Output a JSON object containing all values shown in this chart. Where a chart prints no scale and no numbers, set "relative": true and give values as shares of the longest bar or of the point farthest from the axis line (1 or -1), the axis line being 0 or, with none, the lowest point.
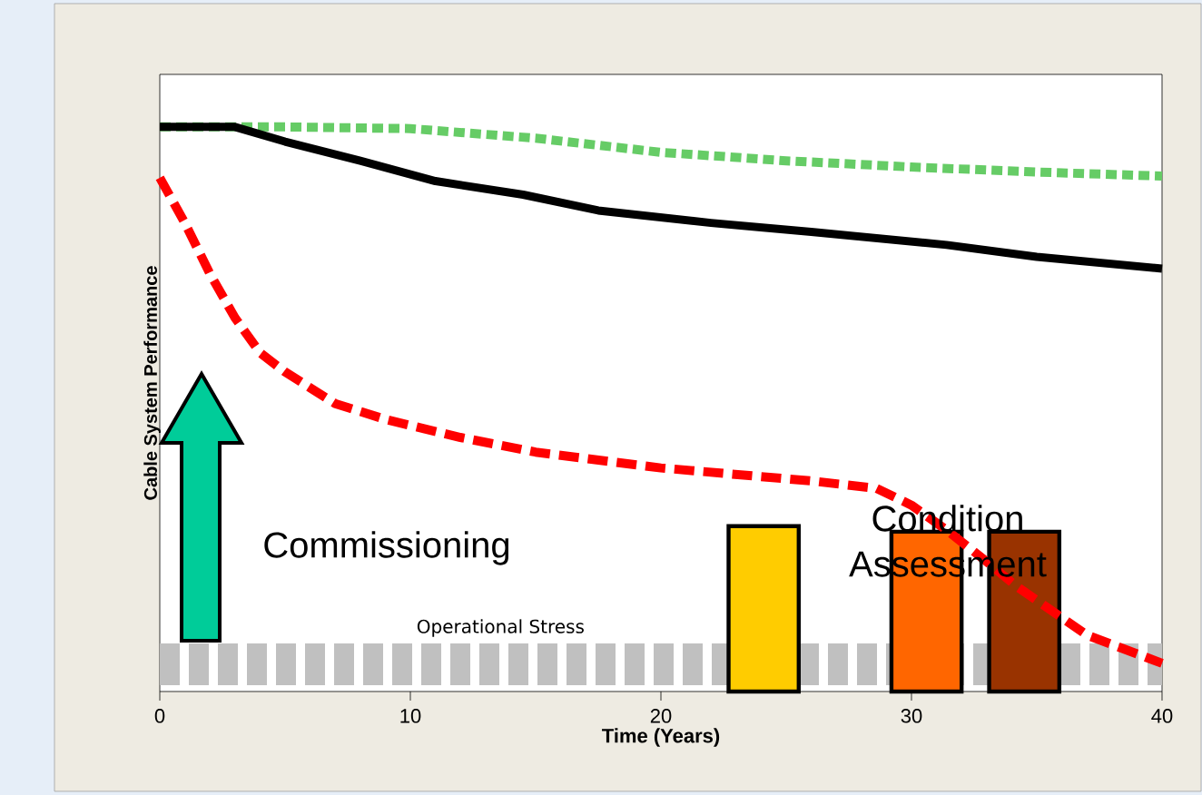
{
  "chart_data": {
    "type": "line",
    "relative": true,
    "xlabel": "Time (Years)",
    "ylabel": "Cable System Performance",
    "xlim": [
      0,
      40
    ],
    "xticks": [
      0,
      10,
      20,
      30,
      40
    ],
    "grid": false,
    "marker": "none",
    "series": [
      {
        "name": "Operational Stress",
        "color": "#c0c0c0",
        "line_style": "dashed",
        "x": [
          0,
          40
        ],
        "values": [
          0.048,
          0.048
        ]
      },
      {
        "type": "bar",
        "color": "#ff6600",
        "colors": [
          "#ffcc00",
          "#ff6600",
          "#993300"
        ],
        "x": [
          24.1,
          30.6,
          34.5
        ],
        "values": [
          0.293,
          0.283,
          0.283
        ]
      },
      {
        "color": "#66cc66",
        "line_style": "dotted",
        "x": [
          0,
          5,
          10,
          15,
          20,
          25,
          30,
          35,
          40
        ],
        "values": [
          1.0,
          1.0,
          0.997,
          0.98,
          0.955,
          0.94,
          0.929,
          0.92,
          0.913
        ]
      },
      {
        "color": "#000000",
        "line_style": "solid",
        "x": [
          0,
          3,
          5,
          8,
          11,
          14.5,
          17.5,
          22,
          26,
          31.4,
          35,
          40
        ],
        "values": [
          1.0,
          1.0,
          0.974,
          0.94,
          0.904,
          0.88,
          0.852,
          0.83,
          0.814,
          0.791,
          0.77,
          0.749
        ]
      },
      {
        "color": "#ff0000",
        "line_style": "dashed",
        "x": [
          0,
          1,
          2,
          3,
          4,
          5,
          7,
          9,
          12,
          15,
          20,
          26,
          28.6,
          30,
          31.4,
          33,
          34.2,
          37,
          40
        ],
        "values": [
          0.91,
          0.83,
          0.74,
          0.662,
          0.6,
          0.566,
          0.51,
          0.482,
          0.45,
          0.424,
          0.396,
          0.373,
          0.36,
          0.33,
          0.286,
          0.23,
          0.186,
          0.1,
          0.05
        ]
      }
    ],
    "annotations": [
      "Commissioning",
      "Condition Assessment"
    ]
  }
}
